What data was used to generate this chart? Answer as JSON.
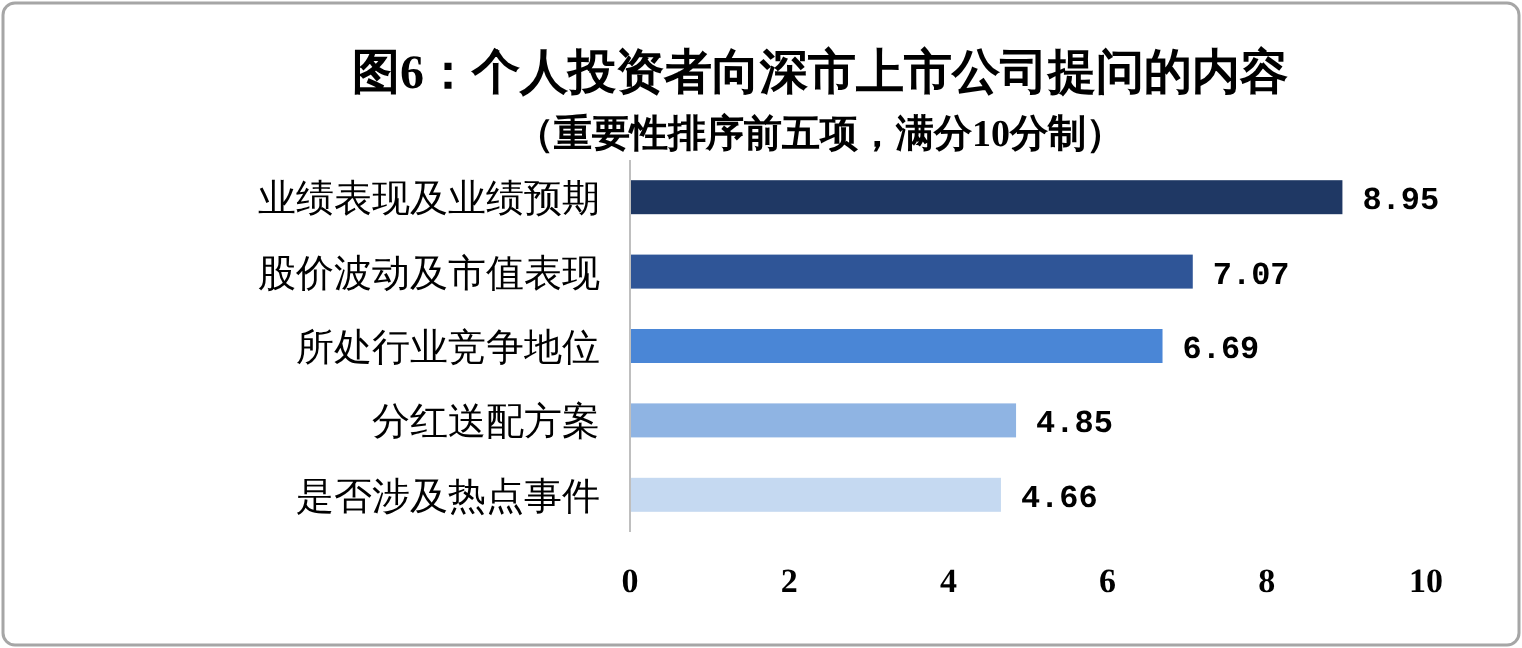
{
  "chart_data": {
    "type": "bar",
    "orientation": "horizontal",
    "title": "图6：个人投资者向深市上市公司提问的内容",
    "subtitle": "（重要性排序前五项，满分10分制）",
    "categories": [
      "业绩表现及业绩预期",
      "股价波动及市值表现",
      "所处行业竞争地位",
      "分红送配方案",
      "是否涉及热点事件"
    ],
    "values": [
      8.95,
      7.07,
      6.69,
      4.85,
      4.66
    ],
    "colors": [
      "#1f3864",
      "#2f5597",
      "#4a86d6",
      "#8fb4e3",
      "#c5d9f1"
    ],
    "xlim": [
      0,
      10
    ],
    "xticks": [
      0,
      2,
      4,
      6,
      8,
      10
    ],
    "data_labels": true,
    "grid": false
  }
}
